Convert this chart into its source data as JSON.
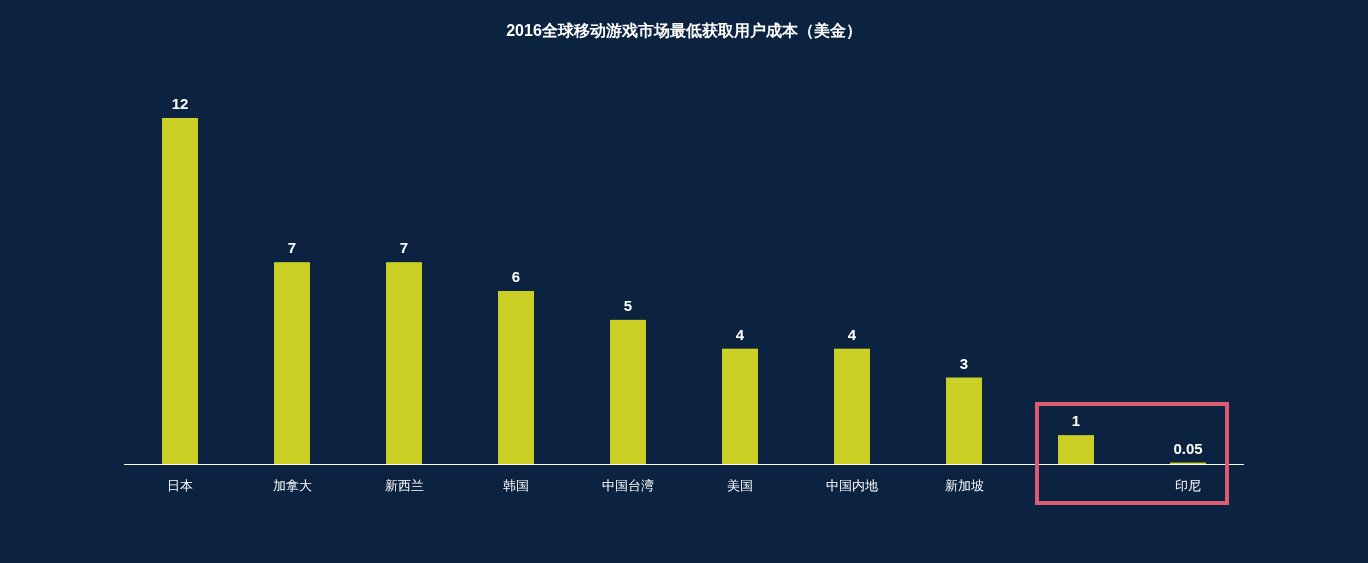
{
  "chart_data": {
    "type": "bar",
    "title": "2016全球移动游戏市场最低获取用户成本（美金）",
    "categories": [
      "日本",
      "加拿大",
      "新西兰",
      "韩国",
      "中国台湾",
      "美国",
      "中国内地",
      "新加坡",
      null,
      "印尼"
    ],
    "values": [
      12,
      7,
      7,
      6,
      5,
      4,
      4,
      3,
      1,
      0.05
    ],
    "color": "#cbd026",
    "data_labels": true
  }
}
